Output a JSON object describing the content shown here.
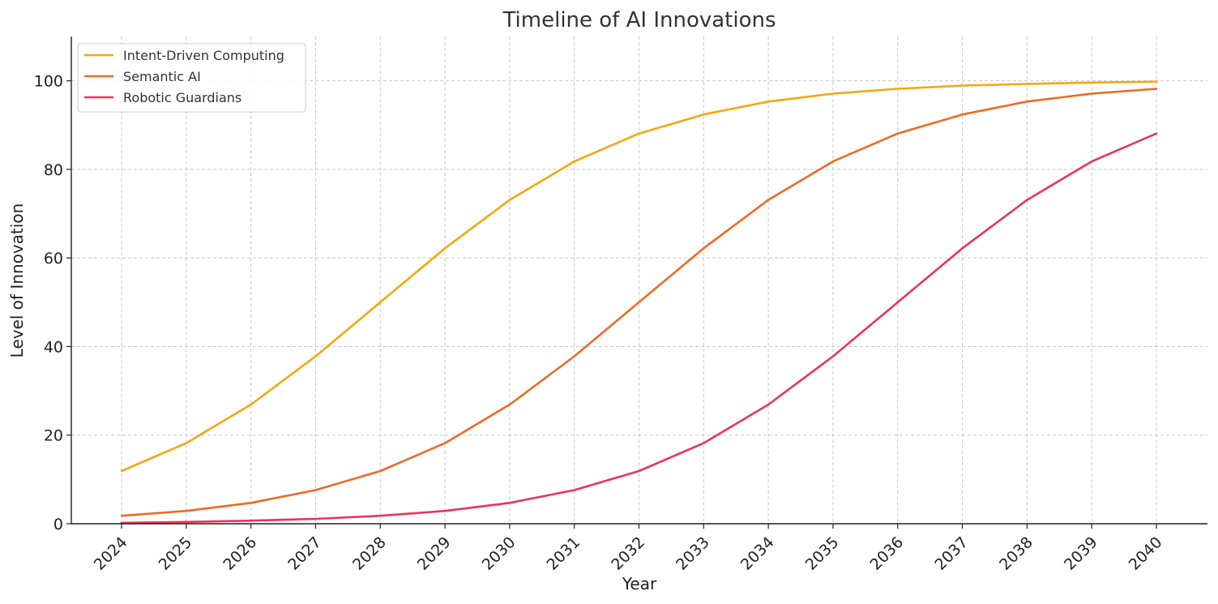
{
  "chart_data": {
    "type": "line",
    "title": "Timeline of AI Innovations",
    "xlabel": "Year",
    "ylabel": "Level of Innovation",
    "x": [
      "2024",
      "2025",
      "2026",
      "2027",
      "2028",
      "2029",
      "2030",
      "2031",
      "2032",
      "2033",
      "2034",
      "2035",
      "2036",
      "2037",
      "2038",
      "2039",
      "2040"
    ],
    "ylim": [
      0,
      110
    ],
    "yticks": [
      "0",
      "20",
      "40",
      "60",
      "80",
      "100"
    ],
    "grid": true,
    "legend_position": "top-left",
    "series": [
      {
        "name": "Intent-Driven Computing",
        "color": "#f5a70f",
        "values": [
          11.9,
          18.2,
          26.9,
          37.8,
          50.0,
          62.2,
          73.1,
          81.8,
          88.1,
          92.4,
          95.3,
          97.1,
          98.2,
          98.9,
          99.3,
          99.6,
          99.8
        ]
      },
      {
        "name": "Semantic AI",
        "color": "#ee6a25",
        "values": [
          1.8,
          2.9,
          4.7,
          7.6,
          11.9,
          18.2,
          26.9,
          37.8,
          50.0,
          62.2,
          73.1,
          81.8,
          88.1,
          92.4,
          95.3,
          97.1,
          98.2
        ]
      },
      {
        "name": "Robotic Guardians",
        "color": "#e8355a",
        "values": [
          0.2,
          0.4,
          0.7,
          1.1,
          1.8,
          2.9,
          4.7,
          7.6,
          11.9,
          18.2,
          26.9,
          37.8,
          50.0,
          62.2,
          73.1,
          81.8,
          88.1
        ]
      }
    ]
  }
}
